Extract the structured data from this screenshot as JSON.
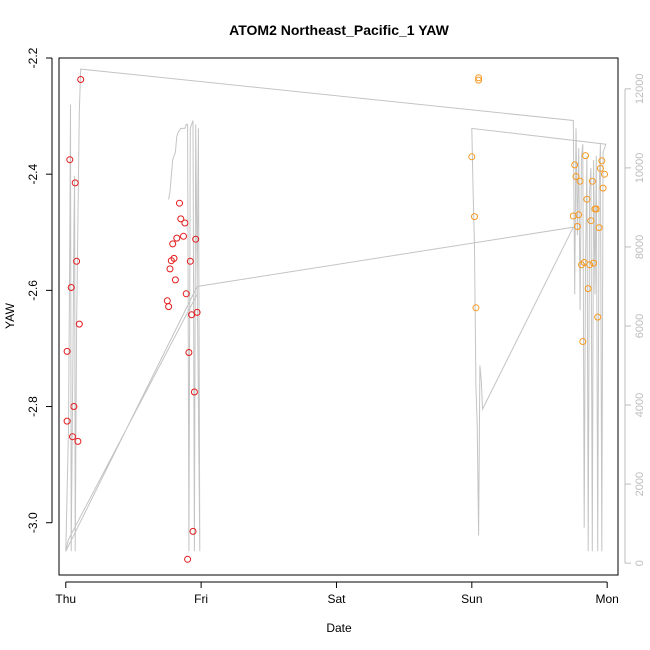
{
  "chart_data": {
    "type": "scatter",
    "title": "ATOM2 Northeast_Pacific_1 YAW",
    "xlabel": "Date",
    "ylabel": "YAW",
    "x_ticks": [
      "Thu",
      "Fri",
      "Sat",
      "Sun",
      "Mon"
    ],
    "x_tick_days": [
      0,
      1,
      2,
      3,
      4
    ],
    "xlim": [
      -0.05,
      4.08
    ],
    "y_ticks": [
      -3.0,
      -2.8,
      -2.6,
      -2.4,
      -2.2
    ],
    "y_tick_labels": [
      "-3.0",
      "-2.8",
      "-2.6",
      "-2.4",
      "-2.2"
    ],
    "ylim": [
      -3.09,
      -2.2
    ],
    "y2_ticks": [
      0,
      2000,
      4000,
      6000,
      8000,
      10000,
      12000
    ],
    "y2_tick_labels": [
      "0",
      "2000",
      "4000",
      "6000",
      "8000",
      "10000",
      "12000"
    ],
    "y2lim": [
      -300,
      12780
    ],
    "colors": {
      "red": "#e41a1c",
      "orange": "#f59a23",
      "gray": "#c4c4c4",
      "axis": "#000000",
      "right_axis": "#bdbdbd"
    },
    "series": [
      {
        "color": "red",
        "points": [
          [
            0.01,
            -2.825
          ],
          [
            0.01,
            -2.705
          ],
          [
            0.03,
            -2.375
          ],
          [
            0.04,
            -2.595
          ],
          [
            0.05,
            -2.852
          ],
          [
            0.06,
            -2.8
          ],
          [
            0.07,
            -2.415
          ],
          [
            0.08,
            -2.55
          ],
          [
            0.09,
            -2.86
          ],
          [
            0.1,
            -2.658
          ],
          [
            0.11,
            -2.237
          ],
          [
            0.75,
            -2.618
          ],
          [
            0.76,
            -2.628
          ],
          [
            0.77,
            -2.563
          ],
          [
            0.78,
            -2.549
          ],
          [
            0.79,
            -2.52
          ],
          [
            0.8,
            -2.545
          ],
          [
            0.81,
            -2.582
          ],
          [
            0.82,
            -2.51
          ],
          [
            0.84,
            -2.45
          ],
          [
            0.85,
            -2.477
          ],
          [
            0.87,
            -2.507
          ],
          [
            0.88,
            -2.484
          ],
          [
            0.89,
            -2.606
          ],
          [
            0.9,
            -3.063
          ],
          [
            0.91,
            -2.707
          ],
          [
            0.92,
            -2.55
          ],
          [
            0.93,
            -2.642
          ],
          [
            0.94,
            -3.015
          ],
          [
            0.95,
            -2.775
          ],
          [
            0.96,
            -2.512
          ],
          [
            0.97,
            -2.638
          ]
        ]
      },
      {
        "color": "orange",
        "points": [
          [
            3.0,
            -2.37
          ],
          [
            3.02,
            -2.473
          ],
          [
            3.03,
            -2.63
          ],
          [
            3.05,
            -2.238
          ],
          [
            3.05,
            -2.234
          ],
          [
            3.75,
            -2.472
          ],
          [
            3.76,
            -2.384
          ],
          [
            3.77,
            -2.404
          ],
          [
            3.78,
            -2.49
          ],
          [
            3.79,
            -2.47
          ],
          [
            3.8,
            -2.412
          ],
          [
            3.81,
            -2.556
          ],
          [
            3.82,
            -2.688
          ],
          [
            3.83,
            -2.552
          ],
          [
            3.84,
            -2.368
          ],
          [
            3.85,
            -2.443
          ],
          [
            3.86,
            -2.597
          ],
          [
            3.87,
            -2.556
          ],
          [
            3.88,
            -2.48
          ],
          [
            3.89,
            -2.412
          ],
          [
            3.9,
            -2.553
          ],
          [
            3.91,
            -2.46
          ],
          [
            3.92,
            -2.46
          ],
          [
            3.93,
            -2.646
          ],
          [
            3.94,
            -2.492
          ],
          [
            3.95,
            -2.39
          ],
          [
            3.96,
            -2.377
          ],
          [
            3.97,
            -2.424
          ],
          [
            3.98,
            -2.4
          ]
        ]
      }
    ],
    "gray_line": [
      [
        0.0,
        300
      ],
      [
        0.02,
        3400
      ],
      [
        0.03,
        8200
      ],
      [
        0.035,
        11600
      ],
      [
        0.04,
        300
      ],
      [
        0.055,
        6000
      ],
      [
        0.06,
        8400
      ],
      [
        0.065,
        9800
      ],
      [
        0.07,
        300
      ],
      [
        0.08,
        6000
      ],
      [
        0.1,
        11400
      ],
      [
        0.11,
        12500
      ],
      [
        3.75,
        11200
      ],
      [
        3.76,
        6800
      ],
      [
        3.77,
        11000
      ],
      [
        3.78,
        8300
      ],
      [
        3.79,
        10500
      ],
      [
        3.8,
        6400
      ],
      [
        3.81,
        10300
      ],
      [
        3.82,
        10600
      ],
      [
        3.83,
        900
      ],
      [
        3.84,
        7500
      ],
      [
        3.85,
        10300
      ],
      [
        3.86,
        300
      ],
      [
        3.87,
        9400
      ],
      [
        3.88,
        10000
      ],
      [
        3.89,
        300
      ],
      [
        3.9,
        10200
      ],
      [
        3.91,
        6800
      ],
      [
        3.92,
        10300
      ],
      [
        3.93,
        300
      ],
      [
        3.94,
        9400
      ],
      [
        3.95,
        10600
      ],
      [
        3.96,
        300
      ],
      [
        3.97,
        10400
      ],
      [
        3.98,
        10500
      ],
      [
        3.99,
        10600
      ],
      [
        3.0,
        11000
      ],
      [
        3.01,
        9300
      ],
      [
        3.02,
        8000
      ],
      [
        3.03,
        4500
      ],
      [
        3.04,
        3500
      ],
      [
        3.05,
        700
      ],
      [
        3.06,
        5000
      ],
      [
        3.07,
        4600
      ],
      [
        3.08,
        3900
      ],
      [
        3.75,
        8500
      ],
      [
        0.97,
        7000
      ],
      [
        0.0,
        300
      ],
      [
        0.02,
        600
      ],
      [
        0.97,
        6800
      ],
      [
        0.98,
        11000
      ],
      [
        0.99,
        300
      ],
      [
        0.96,
        11100
      ],
      [
        0.95,
        300
      ],
      [
        0.94,
        11200
      ],
      [
        0.93,
        11100
      ],
      [
        0.92,
        11000
      ],
      [
        0.91,
        300
      ],
      [
        0.9,
        11100
      ],
      [
        0.89,
        11100
      ],
      [
        0.88,
        11000
      ],
      [
        0.85,
        11000
      ],
      [
        0.83,
        10900
      ],
      [
        0.82,
        10800
      ],
      [
        0.81,
        10400
      ],
      [
        0.8,
        10300
      ],
      [
        0.79,
        10200
      ],
      [
        0.78,
        9800
      ],
      [
        0.77,
        9400
      ],
      [
        0.76,
        9200
      ]
    ]
  }
}
